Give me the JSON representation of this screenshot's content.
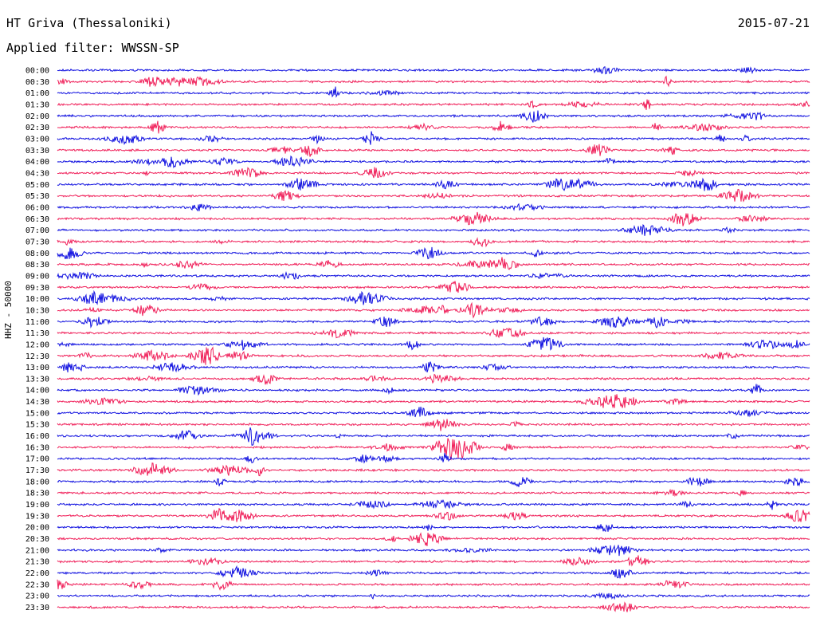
{
  "header": {
    "station": "HT Griva (Thessaloniki)",
    "date": "2015-07-21",
    "filter": "Applied filter: WWSSN-SP"
  },
  "chart_data": {
    "type": "line",
    "title": "HT Griva (Thessaloniki)",
    "ylabel": "HHZ - 50000",
    "colors": {
      "even_rows": "#1010e0",
      "odd_rows": "#f0205a"
    },
    "rows": [
      "00:00",
      "00:30",
      "01:00",
      "01:30",
      "02:00",
      "02:30",
      "03:00",
      "03:30",
      "04:00",
      "04:30",
      "05:00",
      "05:30",
      "06:00",
      "06:30",
      "07:00",
      "07:30",
      "08:00",
      "08:30",
      "09:00",
      "09:30",
      "10:00",
      "10:30",
      "11:00",
      "11:30",
      "12:00",
      "12:30",
      "13:00",
      "13:30",
      "14:00",
      "14:30",
      "15:00",
      "15:30",
      "16:00",
      "16:30",
      "17:00",
      "17:30",
      "18:00",
      "18:30",
      "19:00",
      "19:30",
      "20:00",
      "20:30",
      "21:00",
      "21:30",
      "22:00",
      "22:30",
      "23:00",
      "23:30"
    ]
  }
}
